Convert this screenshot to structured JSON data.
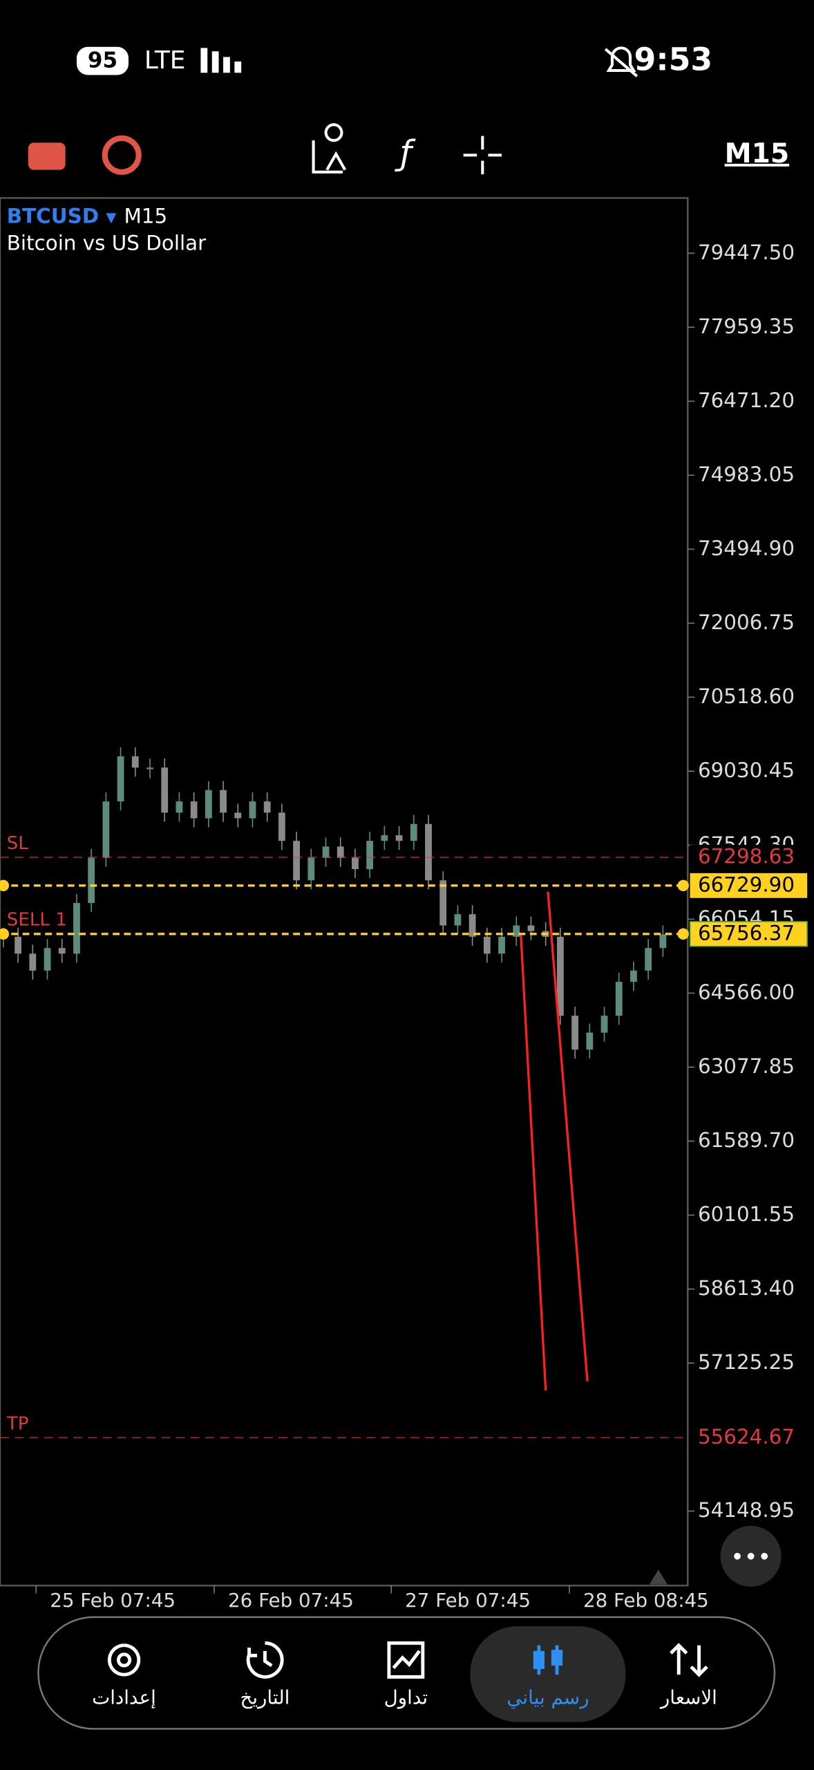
{
  "status_bar": {
    "battery": "95",
    "network": "LTE",
    "time": "9:53"
  },
  "toolbar": {
    "timeframe": "M15"
  },
  "chart_data": {
    "type": "candlestick",
    "symbol": "BTCUSD",
    "timeframe": "M15",
    "description": "Bitcoin vs US Dollar",
    "up_color": "#5e8c7c",
    "down_color": "#8a8a8a",
    "ylim": [
      52651,
      80559
    ],
    "yticks": [
      {
        "value": 79447.5,
        "label": "79447.50"
      },
      77959.35,
      {
        "value": 76471.2,
        "label": "76471.20"
      },
      74983.05,
      {
        "value": 73494.9,
        "label": "73494.90"
      },
      72006.75,
      {
        "value": 70518.6,
        "label": "70518.60"
      },
      69030.45,
      {
        "value": 67542.3,
        "label": "67542.30"
      },
      66054.15,
      {
        "value": 64566,
        "label": "64566.00"
      },
      63077.85,
      {
        "value": 61589.7,
        "label": "61589.70"
      },
      60101.55,
      {
        "value": 58613.4,
        "label": "58613.40"
      },
      57125.25,
      54148.95
    ],
    "x_labels": [
      "25 Feb 07:45",
      "26 Feb 07:45",
      "27 Feb 07:45",
      "28 Feb 08:45"
    ],
    "values": [
      65700,
      65360,
      65020,
      65473,
      65360,
      66380,
      67288,
      68422,
      69330,
      69103,
      69103,
      68196,
      68422,
      68083,
      68650,
      68196,
      68083,
      68422,
      68196,
      67629,
      66835,
      67288,
      67515,
      67288,
      67061,
      67629,
      67742,
      67629,
      67969,
      66835,
      65927,
      66154,
      65700,
      65360,
      65700,
      65927,
      65814,
      65700,
      64112,
      63432,
      63772,
      64112,
      64793,
      65020,
      65473,
      65746
    ],
    "levels": [
      {
        "name": "SL",
        "price": 67298.63,
        "color": "#e0393e"
      },
      {
        "price": {
          "value": 66729.9,
          "label": "66729.90"
        },
        "color": "#ffd21f"
      },
      {
        "name": "SELL 1",
        "price": 65756.37,
        "color": "#ffd21f"
      },
      {
        "name": "TP",
        "price": 55624.67,
        "color": "#e0393e"
      }
    ]
  },
  "bottom_nav": {
    "items": [
      {
        "label": "إعدادات"
      },
      {
        "label": "التاريخ"
      },
      {
        "label": "تداول"
      },
      {
        "label": "رسم بياني"
      },
      {
        "label": "الاسعار"
      }
    ]
  }
}
